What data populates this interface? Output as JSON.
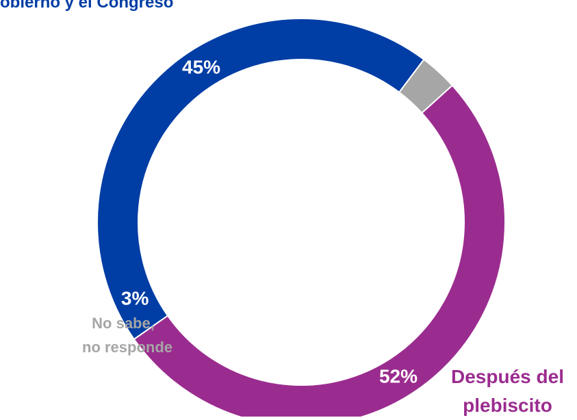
{
  "chart_data": {
    "type": "pie",
    "donut": true,
    "title": "obierno y el Congreso",
    "series": [
      {
        "name": "",
        "values": [
          45,
          52,
          3
        ],
        "labels": [
          "45%",
          "52%",
          "3%"
        ],
        "colors": [
          "#003DA5",
          "#9B2C8F",
          "#A6A6A6"
        ]
      }
    ],
    "category_labels": [
      {
        "text_lines": []
      },
      {
        "text_lines": [
          "Después del",
          "plebiscito"
        ]
      },
      {
        "text_lines": [
          "No sabe,",
          "no responde"
        ]
      }
    ],
    "legend": "none"
  }
}
